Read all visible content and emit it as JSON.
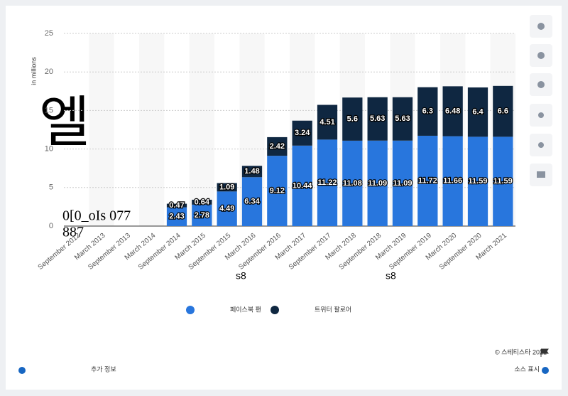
{
  "chart_data": {
    "type": "stacked_bar",
    "y_label": "in millions",
    "categories": [
      "September 2012",
      "March 2013",
      "September 2013",
      "March 2014",
      "September 2014",
      "March 2015",
      "September 2015",
      "March 2016",
      "September 2016",
      "March 2017",
      "September 2017",
      "March 2018",
      "September 2018",
      "March 2019",
      "September 2019",
      "March 2020",
      "September 2020",
      "March 2021"
    ],
    "series": [
      {
        "name": "페이스북 팬",
        "color": "#2876dd",
        "values": [
          null,
          null,
          null,
          null,
          2.43,
          2.78,
          4.49,
          6.34,
          9.12,
          10.44,
          11.22,
          11.08,
          11.09,
          11.09,
          11.72,
          11.66,
          11.59,
          11.59
        ]
      },
      {
        "name": "트위터 팔로어",
        "color": "#0f2741",
        "values": [
          null,
          null,
          null,
          null,
          0.47,
          0.64,
          1.09,
          1.48,
          2.42,
          3.24,
          4.51,
          5.6,
          5.63,
          5.63,
          6.3,
          6.48,
          6.4,
          6.6
        ]
      }
    ],
    "ylim": [
      0,
      25
    ],
    "yticks": [
      0,
      5,
      10,
      15,
      20,
      25
    ],
    "grid": true,
    "legend": "bottom",
    "annotations": [
      "엘",
      "0[0_oIs 077",
      "887",
      "s8",
      "s8"
    ],
    "credit": "© 스테티스타 2021",
    "more_info": "추가 정보",
    "show_source": "소스 표시"
  }
}
